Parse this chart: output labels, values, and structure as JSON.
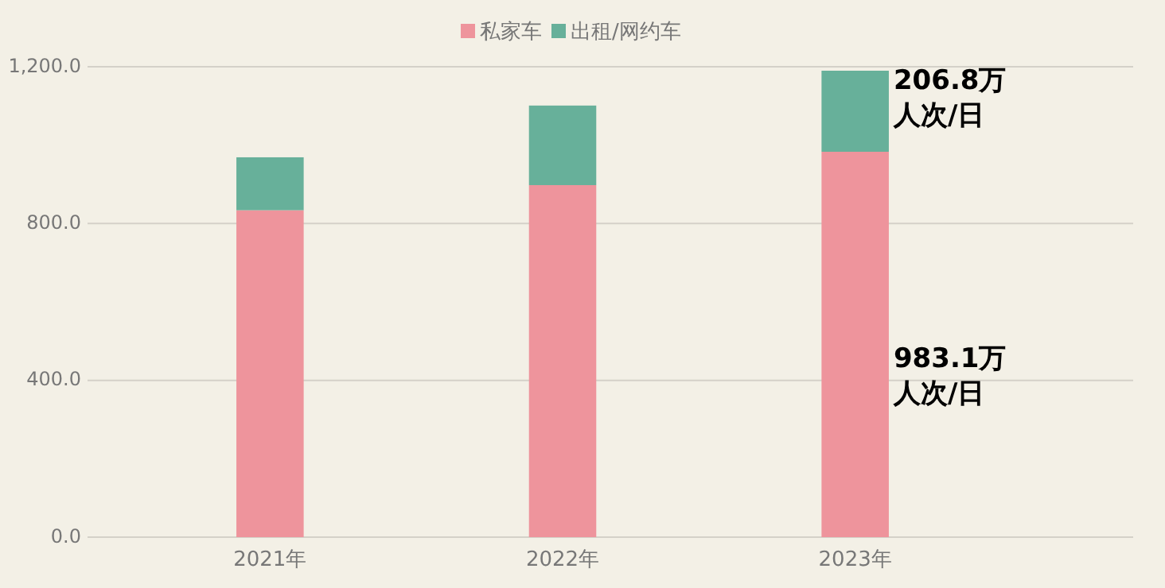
{
  "chart_data": {
    "type": "bar",
    "stacked": true,
    "categories": [
      "2021年",
      "2022年",
      "2023年"
    ],
    "series": [
      {
        "name": "私家车",
        "color": "#ee949c",
        "values": [
          834,
          898,
          983.1
        ]
      },
      {
        "name": "出租/网约车",
        "color": "#67b09a",
        "values": [
          135,
          203,
          206.8
        ]
      }
    ],
    "annotations": [
      "206.8万人次/日",
      "983.1万人次/日"
    ],
    "ylim": [
      0,
      1200
    ],
    "yticks": [
      {
        "value": 0,
        "label": "0.0"
      },
      {
        "value": 400,
        "label": "400.0"
      },
      {
        "value": 800,
        "label": "800.0"
      },
      {
        "value": 1200,
        "label": "1,200.0"
      }
    ],
    "grid": "y",
    "legend": "top"
  }
}
